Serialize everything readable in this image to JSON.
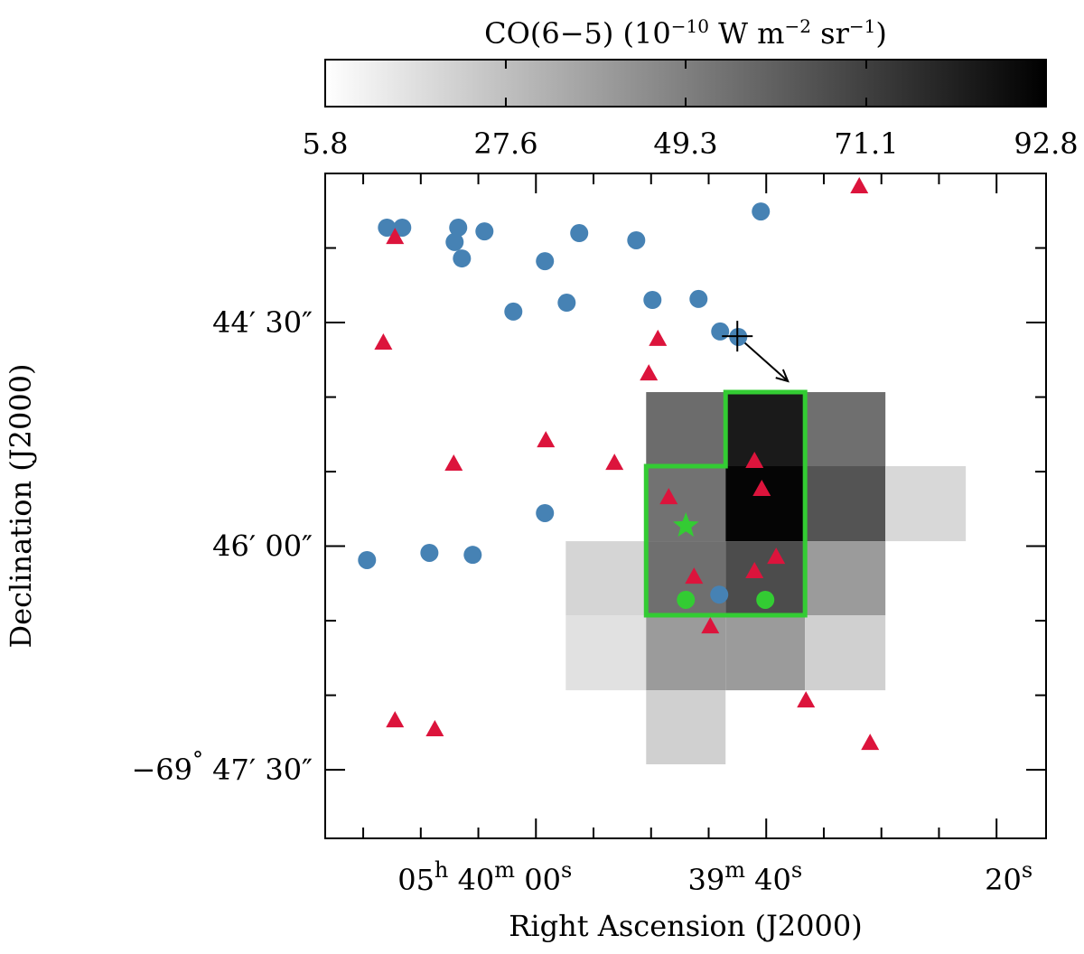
{
  "chart_data": {
    "type": "image-scatter",
    "colorbar_label": [
      {
        "text": "CO(6−5) (10"
      },
      {
        "text": "−10",
        "sup": true
      },
      {
        "text": " W m"
      },
      {
        "text": "−2",
        "sup": true
      },
      {
        "text": " sr"
      },
      {
        "text": "−1",
        "sup": true
      },
      {
        "text": ")"
      }
    ],
    "colorbar_lim": [
      5.8,
      92.8
    ],
    "colorbar_ticks": [
      5.8,
      27.6,
      49.3,
      71.1,
      92.8
    ],
    "colormap": [
      "#ffffff",
      "#000000"
    ],
    "x_label": "Right Ascension (J2000)",
    "y_label": "Declination (J2000)",
    "xlim": [
      78.3,
      15.7
    ],
    "ylim": [
      2877.6,
      2610
    ],
    "xticks": [
      {
        "value": 60,
        "label": "05h 40m 00s"
      },
      {
        "value": 40,
        "label": "39m 40s"
      },
      {
        "value": 20,
        "label": "20s"
      }
    ],
    "xminor": [
      75,
      70,
      65,
      55,
      50,
      45,
      35,
      30,
      25
    ],
    "yticks": [
      {
        "value": 2670,
        "label": "44′ 30″"
      },
      {
        "value": 2760,
        "label": "46′ 00″"
      },
      {
        "value": 2850,
        "label": "−69° 47′ 30″"
      }
    ],
    "yminor": [
      2640,
      2700,
      2730,
      2790,
      2820
    ],
    "image": {
      "x_edges": [
        57.41,
        50.43,
        43.53,
        36.63,
        29.65,
        22.67
      ],
      "y_edges": [
        2698,
        2727.8,
        2758,
        2787.8,
        2818,
        2847.8
      ],
      "values": [
        [
          null,
          56,
          84,
          55,
          null
        ],
        [
          null,
          54,
          91,
          64,
          19
        ],
        [
          20,
          55,
          67,
          40,
          null
        ],
        [
          16,
          40,
          40,
          22,
          null
        ],
        [
          null,
          22,
          null,
          null,
          null
        ]
      ]
    },
    "region": {
      "color": "#33cc33",
      "x": [
        50.43,
        43.53,
        43.53,
        36.63,
        36.63,
        50.43
      ],
      "y": [
        2727.8,
        2727.8,
        2698,
        2698,
        2787.8,
        2787.8
      ]
    },
    "series": [
      {
        "marker": "circle",
        "color": "#4682b4",
        "x": [
          72.94,
          71.61,
          66.75,
          64.47,
          67.06,
          66.43,
          59.22,
          56.24,
          51.29,
          40.47,
          61.96,
          57.33,
          49.88,
          45.88,
          44.0,
          42.43,
          59.22,
          74.67,
          69.25,
          65.49,
          44.08
        ],
        "y": [
          2631.8,
          2631.8,
          2631.8,
          2633.3,
          2637.6,
          2644.2,
          2645.3,
          2634.0,
          2636.9,
          2625.3,
          2665.6,
          2662.0,
          2660.9,
          2660.5,
          2673.6,
          2675.8,
          2746.7,
          2765.6,
          2762.7,
          2763.5,
          2779.5
        ]
      },
      {
        "marker": "triangle",
        "color": "#dc143c",
        "x": [
          31.92,
          72.24,
          73.25,
          49.41,
          50.2,
          59.14,
          67.14,
          53.18,
          41.02,
          40.39,
          48.47,
          39.14,
          41.02,
          46.27,
          44.86,
          36.55,
          72.24,
          68.78,
          30.98
        ],
        "y": [
          2615.1,
          2635.5,
          2678.0,
          2676.5,
          2690.4,
          2717.3,
          2726.7,
          2726.4,
          2725.6,
          2736.9,
          2740.2,
          2764.2,
          2770.0,
          2772.2,
          2792.2,
          2822.0,
          2830.0,
          2833.6,
          2839.1
        ]
      },
      {
        "marker": "circle",
        "color": "#33cc33",
        "x": [
          46.98,
          40.08
        ],
        "y": [
          2781.6,
          2781.6
        ]
      },
      {
        "marker": "star",
        "color": "#33cc33",
        "x": [
          46.98
        ],
        "y": [
          2751.8
        ]
      },
      {
        "marker": "plus",
        "color": "#000000",
        "x": [
          42.51
        ],
        "y": [
          2675.5
        ]
      }
    ],
    "arrow": {
      "color": "#000000",
      "x": [
        42.51,
        38.12
      ],
      "y": [
        2675.5,
        2693.6
      ]
    }
  }
}
